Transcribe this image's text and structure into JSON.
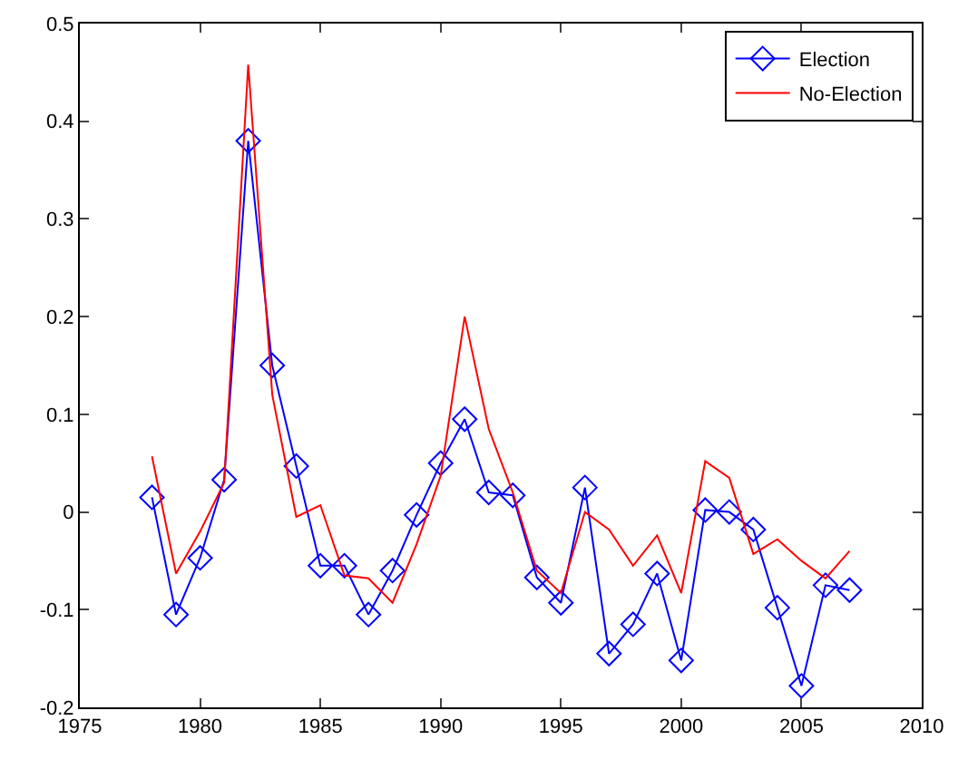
{
  "chart_data": {
    "type": "line",
    "x": [
      1978,
      1979,
      1980,
      1981,
      1982,
      1983,
      1984,
      1985,
      1986,
      1987,
      1988,
      1989,
      1990,
      1991,
      1992,
      1993,
      1994,
      1995,
      1996,
      1997,
      1998,
      1999,
      2000,
      2001,
      2002,
      2003,
      2004,
      2005,
      2006,
      2007
    ],
    "series": [
      {
        "name": "Election",
        "color": "#0000ff",
        "marker": "diamond",
        "values": [
          0.015,
          -0.105,
          -0.047,
          0.033,
          0.38,
          0.15,
          0.047,
          -0.055,
          -0.055,
          -0.105,
          -0.06,
          -0.003,
          0.05,
          0.095,
          0.02,
          0.017,
          -0.067,
          -0.093,
          0.025,
          -0.145,
          -0.115,
          -0.063,
          -0.152,
          0.002,
          0.0,
          -0.018,
          -0.098,
          -0.178,
          -0.075,
          -0.08
        ]
      },
      {
        "name": "No-Election",
        "color": "#ff0000",
        "marker": "none",
        "values": [
          0.057,
          -0.063,
          -0.02,
          0.03,
          0.458,
          0.12,
          -0.005,
          0.007,
          -0.065,
          -0.068,
          -0.093,
          -0.033,
          0.037,
          0.2,
          0.085,
          0.02,
          -0.06,
          -0.083,
          0.0,
          -0.018,
          -0.055,
          -0.024,
          -0.083,
          0.052,
          0.035,
          -0.043,
          -0.028,
          -0.05,
          -0.068,
          -0.04
        ]
      }
    ],
    "xlim": [
      1975,
      2010
    ],
    "xticks": [
      1975,
      1980,
      1985,
      1990,
      1995,
      2000,
      2005,
      2010
    ],
    "ylim": [
      -0.2,
      0.5
    ],
    "yticks": [
      -0.2,
      -0.1,
      0,
      0.1,
      0.2,
      0.3,
      0.4,
      0.5
    ],
    "legend": "top right",
    "line_style": "solid"
  }
}
